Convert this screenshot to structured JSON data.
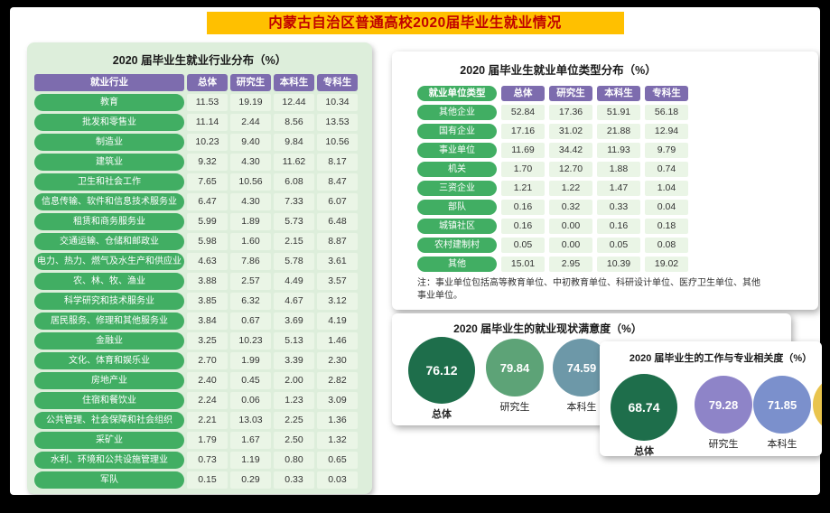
{
  "page_title": "内蒙古自治区普通高校2020届毕业生就业情况",
  "colors": {
    "title_bar_bg": "#ffc000",
    "title_text": "#c00000",
    "pill_green": "#41ae63",
    "header_purple": "#7d6cae",
    "cell_bg": "#eaf5e6",
    "panel_bg": "#ddeedb"
  },
  "chart_data": [
    {
      "id": "industry_distribution",
      "type": "table",
      "title": "2020 届毕业生就业行业分布（%）",
      "columns": [
        "就业行业",
        "总体",
        "研究生",
        "本科生",
        "专科生"
      ],
      "rows": [
        [
          "教育",
          11.53,
          19.19,
          12.44,
          10.34
        ],
        [
          "批发和零售业",
          11.14,
          2.44,
          8.56,
          13.53
        ],
        [
          "制造业",
          10.23,
          9.4,
          9.84,
          10.56
        ],
        [
          "建筑业",
          9.32,
          4.3,
          11.62,
          8.17
        ],
        [
          "卫生和社会工作",
          7.65,
          10.56,
          6.08,
          8.47
        ],
        [
          "信息传输、软件和信息技术服务业",
          6.47,
          4.3,
          7.33,
          6.07
        ],
        [
          "租赁和商务服务业",
          5.99,
          1.89,
          5.73,
          6.48
        ],
        [
          "交通运输、仓储和邮政业",
          5.98,
          1.6,
          2.15,
          8.87
        ],
        [
          "电力、热力、燃气及水生产和供应业",
          4.63,
          7.86,
          5.78,
          3.61
        ],
        [
          "农、林、牧、渔业",
          3.88,
          2.57,
          4.49,
          3.57
        ],
        [
          "科学研究和技术服务业",
          3.85,
          6.32,
          4.67,
          3.12
        ],
        [
          "居民服务、修理和其他服务业",
          3.84,
          0.67,
          3.69,
          4.19
        ],
        [
          "金融业",
          3.25,
          10.23,
          5.13,
          1.46
        ],
        [
          "文化、体育和娱乐业",
          2.7,
          1.99,
          3.39,
          2.3
        ],
        [
          "房地产业",
          2.4,
          0.45,
          2.0,
          2.82
        ],
        [
          "住宿和餐饮业",
          2.24,
          0.06,
          1.23,
          3.09
        ],
        [
          "公共管理、社会保障和社会组织",
          2.21,
          13.03,
          2.25,
          1.36
        ],
        [
          "采矿业",
          1.79,
          1.67,
          2.5,
          1.32
        ],
        [
          "水利、环境和公共设施管理业",
          0.73,
          1.19,
          0.8,
          0.65
        ],
        [
          "军队",
          0.15,
          0.29,
          0.33,
          0.03
        ]
      ]
    },
    {
      "id": "unit_type_distribution",
      "type": "table",
      "title": "2020 届毕业生就业单位类型分布（%）",
      "columns": [
        "就业单位类型",
        "总体",
        "研究生",
        "本科生",
        "专科生"
      ],
      "rows": [
        [
          "其他企业",
          52.84,
          17.36,
          51.91,
          56.18
        ],
        [
          "国有企业",
          17.16,
          31.02,
          21.88,
          12.94
        ],
        [
          "事业单位",
          11.69,
          34.42,
          11.93,
          9.79
        ],
        [
          "机关",
          1.7,
          12.7,
          1.88,
          0.74
        ],
        [
          "三资企业",
          1.21,
          1.22,
          1.47,
          1.04
        ],
        [
          "部队",
          0.16,
          0.32,
          0.33,
          0.04
        ],
        [
          "城镇社区",
          0.16,
          0.0,
          0.16,
          0.18
        ],
        [
          "农村建制村",
          0.05,
          0.0,
          0.05,
          0.08
        ],
        [
          "其他",
          15.01,
          2.95,
          10.39,
          19.02
        ]
      ],
      "note": "注：事业单位包括高等教育单位、中初教育单位、科研设计单位、医疗卫生单位、其他事业单位。"
    },
    {
      "id": "employment_satisfaction",
      "type": "bar",
      "title": "2020 届毕业生的就业现状满意度（%）",
      "categories": [
        "总体",
        "研究生",
        "本科生"
      ],
      "values": [
        76.12,
        79.84,
        74.59
      ],
      "colors": [
        "#1e6e4b",
        "#5da377",
        "#6d98a8"
      ],
      "ylim": [
        0,
        100
      ]
    },
    {
      "id": "job_major_relevance",
      "type": "bar",
      "title": "2020 届毕业生的工作与专业相关度（%）",
      "categories": [
        "总体",
        "研究生",
        "本科生",
        ""
      ],
      "values": [
        68.74,
        79.28,
        71.85,
        null
      ],
      "colors": [
        "#1e6e4b",
        "#8e84c8",
        "#7b90cc",
        "#e9c44d"
      ],
      "ylim": [
        0,
        100
      ]
    }
  ]
}
